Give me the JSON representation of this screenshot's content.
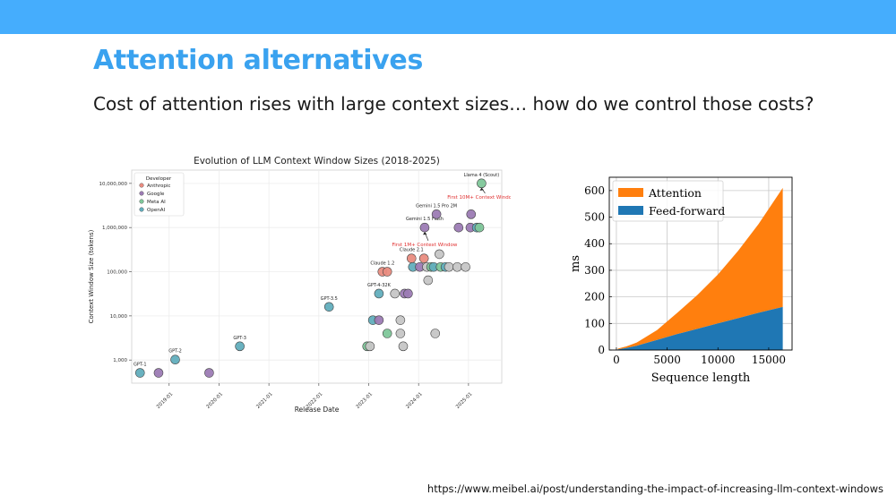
{
  "slide": {
    "title": "Attention alternatives",
    "subtitle": "Cost of attention rises with large context sizes… how do we control those costs?",
    "source": "https://www.meibel.ai/post/understanding-the-impact-of-increasing-llm-context-windows"
  },
  "colors": {
    "topbar": "#45adfd",
    "title": "#3aa2ef",
    "anthropic": "#e98c80",
    "google": "#9c7bb4",
    "meta": "#7fc79a",
    "openai": "#62aebd",
    "other": "#c6c6c6",
    "attention": "#ff7f0e",
    "feed_forward": "#1f77b4",
    "annotation_red": "#e03030"
  },
  "chart_data": [
    {
      "type": "scatter",
      "title": "Evolution of LLM Context Window Sizes (2018-2025)",
      "xlabel": "Release Date",
      "ylabel": "Context Window Size (tokens)",
      "x_scale": "date",
      "y_scale": "log",
      "xlim": [
        "2018-04-01",
        "2025-09-01"
      ],
      "ylim": [
        300,
        20000000
      ],
      "x_ticks": [
        "2019-01",
        "2020-01",
        "2021-01",
        "2022-01",
        "2023-01",
        "2024-01",
        "2025-01"
      ],
      "y_ticks": [
        {
          "value": 1000,
          "label": "1,000"
        },
        {
          "value": 10000,
          "label": "10,000"
        },
        {
          "value": 100000,
          "label": "100,000"
        },
        {
          "value": 1000000,
          "label": "1,000,000"
        },
        {
          "value": 10000000,
          "label": "10,000,000"
        }
      ],
      "grid": true,
      "legend": {
        "title": "Developer",
        "position": "top-left",
        "entries": [
          {
            "label": "Anthropic",
            "key": "anthropic"
          },
          {
            "label": "Google",
            "key": "google"
          },
          {
            "label": "Meta AI",
            "key": "meta"
          },
          {
            "label": "OpenAI",
            "key": "openai"
          }
        ]
      },
      "points": [
        {
          "x": "2018-06-01",
          "y": 512,
          "group": "openai",
          "label": "GPT-1"
        },
        {
          "x": "2018-10-15",
          "y": 512,
          "group": "google"
        },
        {
          "x": "2019-02-15",
          "y": 1024,
          "group": "openai",
          "label": "GPT-2"
        },
        {
          "x": "2019-10-20",
          "y": 512,
          "group": "google"
        },
        {
          "x": "2020-06-01",
          "y": 2048,
          "group": "openai",
          "label": "GPT-3"
        },
        {
          "x": "2022-03-15",
          "y": 16000,
          "group": "openai",
          "label": "GPT-3.5"
        },
        {
          "x": "2022-12-20",
          "y": 2048,
          "group": "meta"
        },
        {
          "x": "2023-01-10",
          "y": 2048,
          "group": "other"
        },
        {
          "x": "2023-02-01",
          "y": 8000,
          "group": "openai"
        },
        {
          "x": "2023-03-15",
          "y": 32000,
          "group": "openai",
          "label": "GPT-4-32K"
        },
        {
          "x": "2023-03-15",
          "y": 8000,
          "group": "google"
        },
        {
          "x": "2023-04-10",
          "y": 100000,
          "group": "anthropic",
          "label": "Claude 1.2"
        },
        {
          "x": "2023-05-15",
          "y": 100000,
          "group": "anthropic"
        },
        {
          "x": "2023-05-15",
          "y": 4000,
          "group": "meta"
        },
        {
          "x": "2023-07-10",
          "y": 32000,
          "group": "other"
        },
        {
          "x": "2023-08-20",
          "y": 8000,
          "group": "other"
        },
        {
          "x": "2023-08-20",
          "y": 4000,
          "group": "other"
        },
        {
          "x": "2023-09-10",
          "y": 2048,
          "group": "other"
        },
        {
          "x": "2023-09-20",
          "y": 32000,
          "group": "google"
        },
        {
          "x": "2023-10-15",
          "y": 32000,
          "group": "google"
        },
        {
          "x": "2023-11-10",
          "y": 200000,
          "group": "anthropic",
          "label": "Claude 2.1"
        },
        {
          "x": "2023-11-20",
          "y": 128000,
          "group": "openai"
        },
        {
          "x": "2024-01-10",
          "y": 128000,
          "group": "google"
        },
        {
          "x": "2024-02-10",
          "y": 200000,
          "group": "anthropic"
        },
        {
          "x": "2024-02-15",
          "y": 1000000,
          "group": "google",
          "label": "Gemini 1.5 Flash"
        },
        {
          "x": "2024-03-01",
          "y": 128000,
          "group": "other"
        },
        {
          "x": "2024-03-10",
          "y": 64000,
          "group": "other"
        },
        {
          "x": "2024-04-01",
          "y": 128000,
          "group": "meta"
        },
        {
          "x": "2024-04-20",
          "y": 128000,
          "group": "openai"
        },
        {
          "x": "2024-05-01",
          "y": 4000,
          "group": "other"
        },
        {
          "x": "2024-05-10",
          "y": 2000000,
          "group": "google",
          "label": "Gemini 1.5 Pro 2M"
        },
        {
          "x": "2024-06-01",
          "y": 250000,
          "group": "other"
        },
        {
          "x": "2024-06-10",
          "y": 128000,
          "group": "meta"
        },
        {
          "x": "2024-07-15",
          "y": 128000,
          "group": "openai"
        },
        {
          "x": "2024-08-10",
          "y": 128000,
          "group": "other"
        },
        {
          "x": "2024-10-10",
          "y": 128000,
          "group": "other"
        },
        {
          "x": "2024-10-20",
          "y": 1000000,
          "group": "google"
        },
        {
          "x": "2024-12-10",
          "y": 128000,
          "group": "other"
        },
        {
          "x": "2025-01-15",
          "y": 1000000,
          "group": "google"
        },
        {
          "x": "2025-01-20",
          "y": 2000000,
          "group": "google"
        },
        {
          "x": "2025-03-01",
          "y": 1000000,
          "group": "openai"
        },
        {
          "x": "2025-03-20",
          "y": 1000000,
          "group": "meta"
        },
        {
          "x": "2025-04-05",
          "y": 10000000,
          "group": "meta",
          "label": "Llama 4 (Scout)"
        }
      ],
      "annotations": [
        {
          "text": "First 10M+ Context Window",
          "x": "2025-04-05",
          "y": 4500000,
          "ref": "Llama 4 (Scout)"
        },
        {
          "text": "First 1M+ Context Window",
          "x": "2024-02-15",
          "y": 380000,
          "ref": "Gemini 1.5 Flash"
        }
      ]
    },
    {
      "type": "area",
      "stacked": true,
      "xlabel": "Sequence length",
      "ylabel": "ms",
      "xlim": [
        -700,
        17300
      ],
      "ylim": [
        0,
        650
      ],
      "x_ticks": [
        0,
        5000,
        10000,
        15000
      ],
      "y_ticks": [
        0,
        100,
        200,
        300,
        400,
        500,
        600
      ],
      "grid": true,
      "legend": {
        "position": "top-left"
      },
      "x": [
        128,
        1000,
        2000,
        4000,
        6000,
        8000,
        10000,
        12000,
        14000,
        16384
      ],
      "series": [
        {
          "name": "Feed-forward",
          "key": "feed_forward",
          "values": [
            2,
            8,
            16,
            38,
            60,
            80,
            100,
            120,
            140,
            162
          ]
        },
        {
          "name": "Attention",
          "key": "attention",
          "values": [
            3,
            6,
            12,
            37,
            80,
            128,
            184,
            254,
            334,
            448
          ]
        }
      ]
    }
  ]
}
